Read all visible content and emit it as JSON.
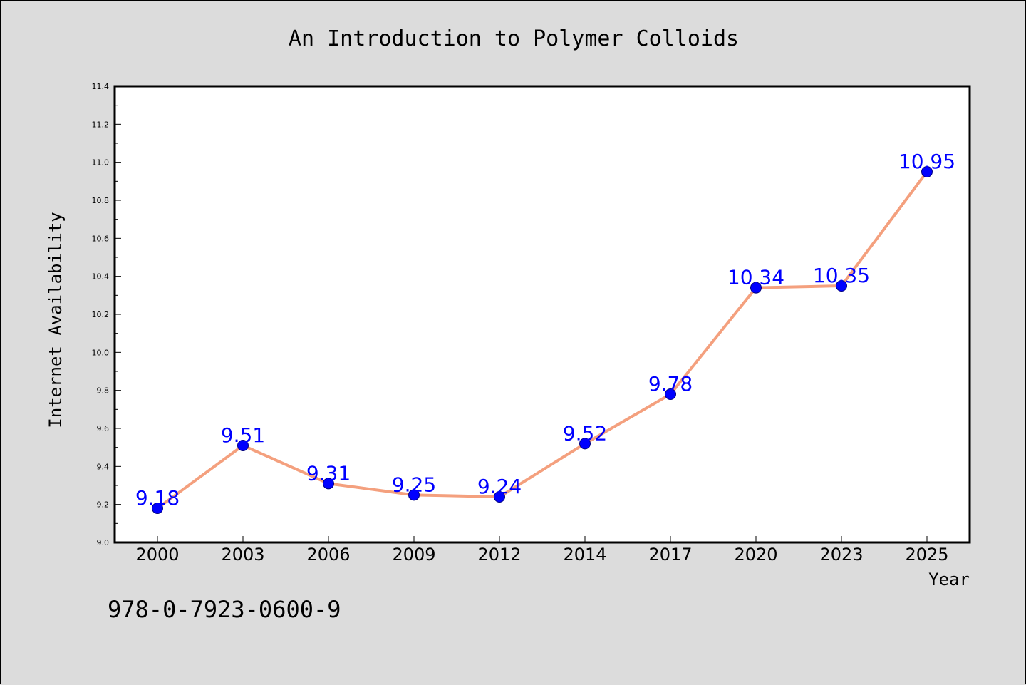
{
  "chart_data": {
    "type": "line",
    "title": "An Introduction to Polymer Colloids",
    "xlabel": "Year",
    "ylabel": "Internet Availability",
    "categories": [
      "2000",
      "2003",
      "2006",
      "2009",
      "2012",
      "2014",
      "2017",
      "2020",
      "2023",
      "2025"
    ],
    "series": [
      {
        "values": [
          9.18,
          9.51,
          9.31,
          9.25,
          9.24,
          9.52,
          9.78,
          10.34,
          10.35,
          10.95
        ]
      }
    ],
    "data_labels": [
      "9.18",
      "9.51",
      "9.31",
      "9.25",
      "9.24",
      "9.52",
      "9.78",
      "10.34",
      "10.35",
      "10.95"
    ],
    "ylim": [
      9.0,
      11.4
    ],
    "y_ticks": [
      "9.0",
      "9.2",
      "9.4",
      "9.6",
      "9.8",
      "10.0",
      "10.2",
      "10.4",
      "10.6",
      "10.8",
      "11.0",
      "11.2",
      "11.4"
    ],
    "grid": false,
    "colors": {
      "line": "#f4a07e",
      "marker": "#0000ff",
      "marker_edge": "#000080",
      "label": "#0000ff",
      "plot_bg": "#ffffff",
      "page_bg": "#dcdcdc"
    }
  },
  "footer": {
    "isbn": "978-0-7923-0600-9"
  }
}
